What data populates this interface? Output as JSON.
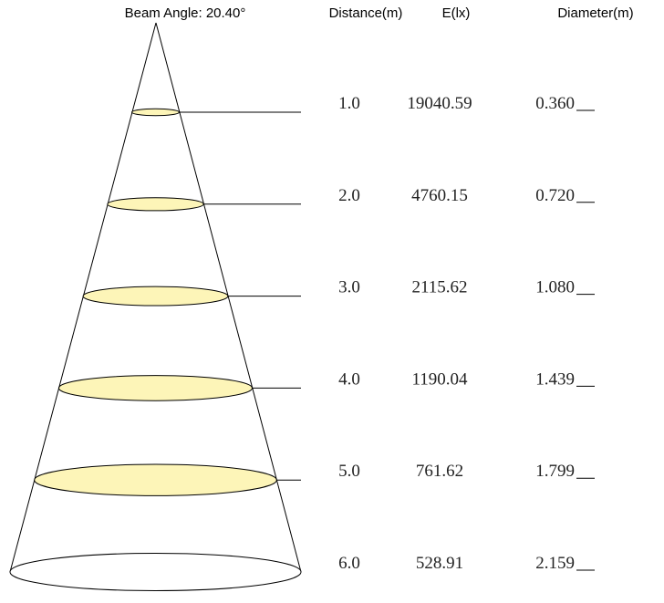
{
  "header": {
    "beam_angle": "Beam Angle: 20.40°",
    "distance": "Distance(m)",
    "illuminance": "E(lx)",
    "diameter": "Diameter(m)"
  },
  "rows": [
    {
      "distance": "1.0",
      "illuminance": "19040.59",
      "diameter": "0.360"
    },
    {
      "distance": "2.0",
      "illuminance": "4760.15",
      "diameter": "0.720"
    },
    {
      "distance": "3.0",
      "illuminance": "2115.62",
      "diameter": "1.080"
    },
    {
      "distance": "4.0",
      "illuminance": "1190.04",
      "diameter": "1.439"
    },
    {
      "distance": "5.0",
      "illuminance": "761.62",
      "diameter": "1.799"
    },
    {
      "distance": "6.0",
      "illuminance": "528.91",
      "diameter": "2.159"
    }
  ]
}
